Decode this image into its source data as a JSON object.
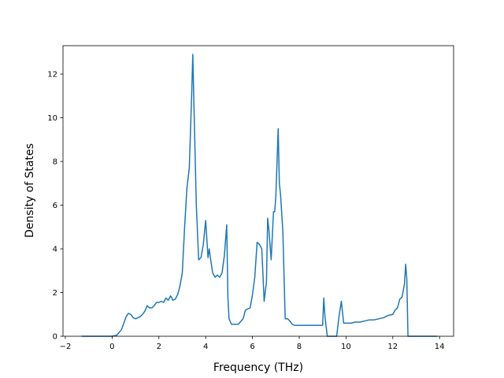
{
  "chart_data": {
    "type": "line",
    "title": "",
    "xlabel": "Frequency (THz)",
    "ylabel": "Density of States",
    "xlim": [
      -2.1,
      14.6
    ],
    "ylim": [
      0,
      13.3
    ],
    "grid": false,
    "legend": "none",
    "xticks": [
      -2,
      0,
      2,
      4,
      6,
      8,
      10,
      12,
      14
    ],
    "xtick_labels": [
      "−2",
      "0",
      "2",
      "4",
      "6",
      "8",
      "10",
      "12",
      "14"
    ],
    "yticks": [
      0,
      2,
      4,
      6,
      8,
      10,
      12
    ],
    "ytick_labels": [
      "0",
      "2",
      "4",
      "6",
      "8",
      "10",
      "12"
    ],
    "series": [
      {
        "color": "#1f77b4",
        "x": [
          -1.3,
          -0.5,
          0.0,
          0.2,
          0.4,
          0.5,
          0.6,
          0.7,
          0.8,
          0.9,
          1.0,
          1.2,
          1.3,
          1.4,
          1.5,
          1.6,
          1.7,
          1.8,
          1.9,
          2.0,
          2.1,
          2.2,
          2.3,
          2.4,
          2.5,
          2.6,
          2.7,
          2.8,
          2.9,
          3.0,
          3.1,
          3.2,
          3.3,
          3.4,
          3.45,
          3.5,
          3.6,
          3.7,
          3.8,
          3.9,
          4.0,
          4.1,
          4.15,
          4.2,
          4.3,
          4.4,
          4.5,
          4.6,
          4.7,
          4.8,
          4.9,
          4.95,
          5.0,
          5.1,
          5.2,
          5.4,
          5.6,
          5.7,
          5.8,
          5.9,
          6.0,
          6.1,
          6.2,
          6.3,
          6.4,
          6.5,
          6.6,
          6.65,
          6.7,
          6.8,
          6.9,
          6.95,
          7.0,
          7.1,
          7.15,
          7.2,
          7.3,
          7.4,
          7.5,
          7.6,
          7.7,
          7.8,
          8.0,
          8.5,
          9.0,
          9.05,
          9.1,
          9.2,
          9.4,
          9.6,
          9.7,
          9.8,
          9.9,
          10.0,
          10.2,
          10.4,
          10.6,
          10.8,
          11.0,
          11.2,
          11.4,
          11.6,
          11.8,
          12.0,
          12.1,
          12.2,
          12.3,
          12.4,
          12.5,
          12.55,
          12.6,
          12.65,
          12.8,
          13.4,
          13.9
        ],
        "values": [
          0,
          0,
          0,
          0.05,
          0.3,
          0.6,
          0.9,
          1.05,
          1.0,
          0.85,
          0.8,
          0.9,
          1.0,
          1.15,
          1.4,
          1.3,
          1.3,
          1.4,
          1.55,
          1.55,
          1.6,
          1.55,
          1.75,
          1.65,
          1.85,
          1.65,
          1.7,
          1.9,
          2.3,
          2.9,
          5.0,
          6.8,
          7.7,
          11.0,
          12.9,
          10.5,
          6.0,
          3.5,
          3.6,
          4.2,
          5.3,
          3.6,
          4.0,
          3.6,
          2.9,
          2.7,
          2.8,
          2.7,
          2.9,
          3.7,
          5.1,
          1.8,
          0.8,
          0.55,
          0.55,
          0.55,
          0.8,
          1.2,
          1.25,
          1.3,
          1.9,
          2.7,
          4.3,
          4.2,
          4.0,
          1.6,
          2.5,
          5.4,
          4.9,
          3.5,
          5.7,
          5.7,
          6.4,
          9.5,
          7.0,
          6.5,
          4.8,
          0.8,
          0.8,
          0.7,
          0.55,
          0.5,
          0.5,
          0.5,
          0.5,
          1.75,
          0.9,
          0,
          0,
          0,
          0.9,
          1.6,
          0.6,
          0.6,
          0.6,
          0.65,
          0.65,
          0.7,
          0.75,
          0.75,
          0.8,
          0.85,
          0.95,
          1.0,
          1.2,
          1.3,
          1.7,
          1.8,
          2.4,
          3.3,
          2.6,
          0,
          0,
          0,
          0
        ]
      }
    ]
  }
}
